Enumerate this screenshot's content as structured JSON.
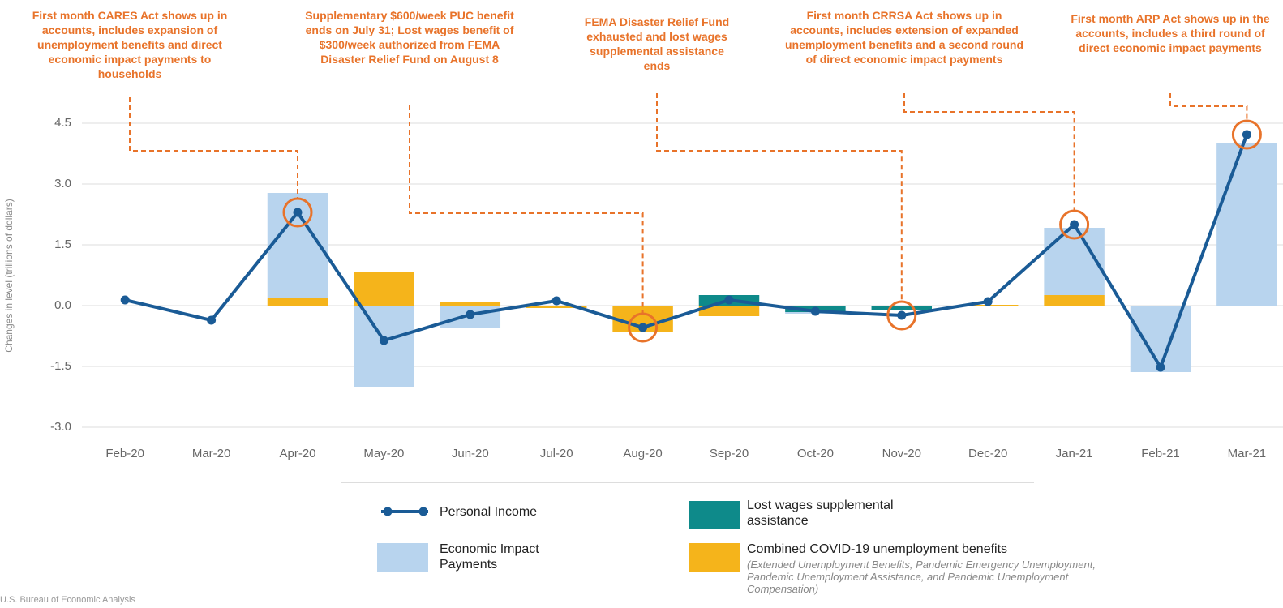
{
  "chart_data": {
    "type": "bar_line",
    "y_label": "Changes in level (trillions of dollars)",
    "categories": [
      "Feb-20",
      "Mar-20",
      "Apr-20",
      "May-20",
      "Jun-20",
      "Jul-20",
      "Aug-20",
      "Sep-20",
      "Oct-20",
      "Nov-20",
      "Dec-20",
      "Jan-21",
      "Feb-21",
      "Mar-21"
    ],
    "ylim": [
      -3,
      4.5
    ],
    "yticks": [
      {
        "value": -3,
        "label": "-3.0"
      },
      -1.5,
      {
        "value": 0,
        "label": "0.0"
      },
      1.5,
      {
        "value": 3,
        "label": "3.0"
      },
      4.5
    ],
    "grid": true,
    "series": [
      {
        "name": "Combined COVID-19 unemployment benefits",
        "kind": "bar",
        "color": "#f5b41b",
        "values": [
          0,
          0,
          0.18,
          0.84,
          0.08,
          -0.06,
          -0.66,
          -0.26,
          0,
          0,
          0.02,
          0.26,
          0,
          0
        ]
      },
      {
        "name": "Lost wages supplemental assistance",
        "kind": "bar",
        "color": "#0e8a8a",
        "values": [
          0,
          0,
          0,
          0,
          0,
          0,
          0,
          0.26,
          -0.16,
          -0.1,
          0,
          0,
          0,
          0
        ]
      },
      {
        "name": "Economic Impact Payments",
        "kind": "bar",
        "color": "#b8d4ee",
        "values": [
          0,
          0,
          2.6,
          -2.0,
          -0.56,
          0,
          0,
          0,
          -0.04,
          0,
          0,
          1.66,
          -1.64,
          4.0
        ]
      },
      {
        "name": "Personal Income",
        "kind": "line",
        "color": "#1a5b96",
        "values": [
          0.14,
          -0.36,
          2.3,
          -0.86,
          -0.22,
          0.12,
          -0.54,
          0.14,
          -0.14,
          -0.24,
          0.1,
          2.0,
          -1.52,
          4.22
        ]
      }
    ],
    "legend_note": "(Extended Unemployment Benefits, Pandemic Emergency Unemployment, Pandemic Unemployment Assistance, and Pandemic Unemployment Compensation)",
    "annotations": [
      "First month CARES Act shows up in accounts, includes expansion of unemployment benefits and direct economic impact payments to households",
      "Supplementary $600/week PUC benefit ends on July 31; Lost wages benefit of $300/week authorized from FEMA Disaster Relief Fund on August 8",
      "FEMA Disaster Relief Fund exhausted and lost wages supplemental assistance ends",
      "First month CRRSA Act shows up in accounts, includes extension of expanded unemployment benefits and a second round of direct economic impact payments",
      "First month ARP Act shows up in the accounts, includes a third round of direct economic impact payments"
    ],
    "source": "U.S. Bureau of Economic Analysis"
  }
}
